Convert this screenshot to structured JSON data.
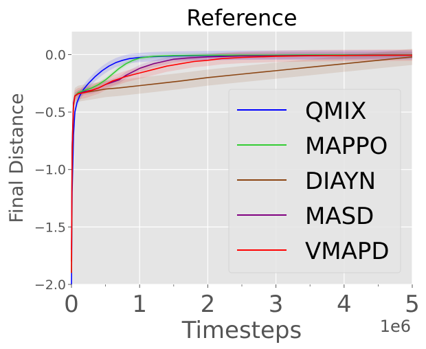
{
  "chart_data": {
    "type": "line",
    "title": "Reference",
    "xlabel": "Timesteps",
    "ylabel": "Final Distance",
    "x_offset_label": "1e6",
    "xlim": [
      0,
      5
    ],
    "ylim": [
      -2.0,
      0.2
    ],
    "x_ticks": [
      "0",
      "1",
      "2",
      "3",
      "4",
      "5"
    ],
    "x_tick_values": [
      0,
      1,
      2,
      3,
      4,
      5
    ],
    "y_ticks": [
      "−2.0",
      "−1.5",
      "−1.0",
      "−0.5",
      "0.0"
    ],
    "y_tick_values": [
      -2.0,
      -1.5,
      -1.0,
      -0.5,
      0.0
    ],
    "grid": true,
    "legend_position": "right",
    "series": [
      {
        "name": "QMIX",
        "color": "#0000ff",
        "x": [
          0.0,
          0.01,
          0.03,
          0.05,
          0.08,
          0.12,
          0.18,
          0.25,
          0.35,
          0.45,
          0.55,
          0.65,
          0.75,
          0.85,
          1.0,
          1.2,
          1.5,
          2.0,
          2.5,
          3.0,
          3.5,
          4.0,
          4.5,
          5.0
        ],
        "y": [
          -2.0,
          -1.2,
          -0.7,
          -0.5,
          -0.42,
          -0.36,
          -0.3,
          -0.25,
          -0.19,
          -0.14,
          -0.1,
          -0.07,
          -0.05,
          -0.035,
          -0.025,
          -0.018,
          -0.012,
          -0.008,
          -0.006,
          -0.005,
          -0.004,
          -0.004,
          -0.003,
          -0.003
        ]
      },
      {
        "name": "MAPPO",
        "color": "#33cc33",
        "x": [
          0.0,
          0.01,
          0.03,
          0.05,
          0.1,
          0.2,
          0.3,
          0.4,
          0.5,
          0.6,
          0.7,
          0.8,
          0.9,
          1.0,
          1.2,
          1.5,
          2.0,
          2.5,
          3.0,
          3.5,
          4.0,
          4.5,
          5.0
        ],
        "y": [
          -1.9,
          -0.9,
          -0.45,
          -0.36,
          -0.33,
          -0.31,
          -0.29,
          -0.26,
          -0.22,
          -0.17,
          -0.12,
          -0.08,
          -0.05,
          -0.03,
          -0.015,
          -0.008,
          -0.005,
          -0.004,
          -0.004,
          -0.003,
          -0.003,
          -0.003,
          -0.003
        ]
      },
      {
        "name": "DIAYN",
        "color": "#8b4513",
        "x": [
          0.0,
          0.01,
          0.03,
          0.05,
          0.1,
          0.2,
          0.3,
          0.5,
          0.7,
          1.0,
          1.3,
          1.6,
          2.0,
          2.5,
          3.0,
          3.5,
          4.0,
          4.5,
          5.0
        ],
        "y": [
          -1.8,
          -0.8,
          -0.42,
          -0.36,
          -0.34,
          -0.33,
          -0.32,
          -0.3,
          -0.29,
          -0.27,
          -0.25,
          -0.23,
          -0.2,
          -0.17,
          -0.14,
          -0.11,
          -0.08,
          -0.05,
          -0.02
        ]
      },
      {
        "name": "MASD",
        "color": "#800080",
        "x": [
          0.0,
          0.01,
          0.03,
          0.05,
          0.1,
          0.2,
          0.3,
          0.4,
          0.5,
          0.6,
          0.7,
          0.8,
          0.9,
          1.0,
          1.1,
          1.2,
          1.35,
          1.5,
          1.7,
          2.0,
          2.5,
          3.0,
          3.5,
          4.0,
          4.5,
          5.0
        ],
        "y": [
          -1.7,
          -0.8,
          -0.42,
          -0.36,
          -0.34,
          -0.32,
          -0.31,
          -0.29,
          -0.26,
          -0.24,
          -0.22,
          -0.18,
          -0.15,
          -0.12,
          -0.1,
          -0.08,
          -0.06,
          -0.04,
          -0.03,
          -0.02,
          -0.012,
          -0.01,
          -0.008,
          -0.007,
          -0.006,
          -0.006
        ]
      },
      {
        "name": "VMAPD",
        "color": "#ff0000",
        "x": [
          0.0,
          0.01,
          0.03,
          0.05,
          0.1,
          0.2,
          0.3,
          0.4,
          0.5,
          0.6,
          0.7,
          0.8,
          1.0,
          1.2,
          1.4,
          1.6,
          1.8,
          2.0,
          2.2,
          2.5,
          3.0,
          3.5,
          4.0,
          4.5,
          5.0
        ],
        "y": [
          -1.9,
          -0.9,
          -0.45,
          -0.36,
          -0.34,
          -0.33,
          -0.31,
          -0.29,
          -0.26,
          -0.23,
          -0.21,
          -0.19,
          -0.16,
          -0.13,
          -0.1,
          -0.08,
          -0.06,
          -0.05,
          -0.035,
          -0.025,
          -0.015,
          -0.01,
          -0.008,
          -0.006,
          -0.005
        ]
      }
    ]
  }
}
